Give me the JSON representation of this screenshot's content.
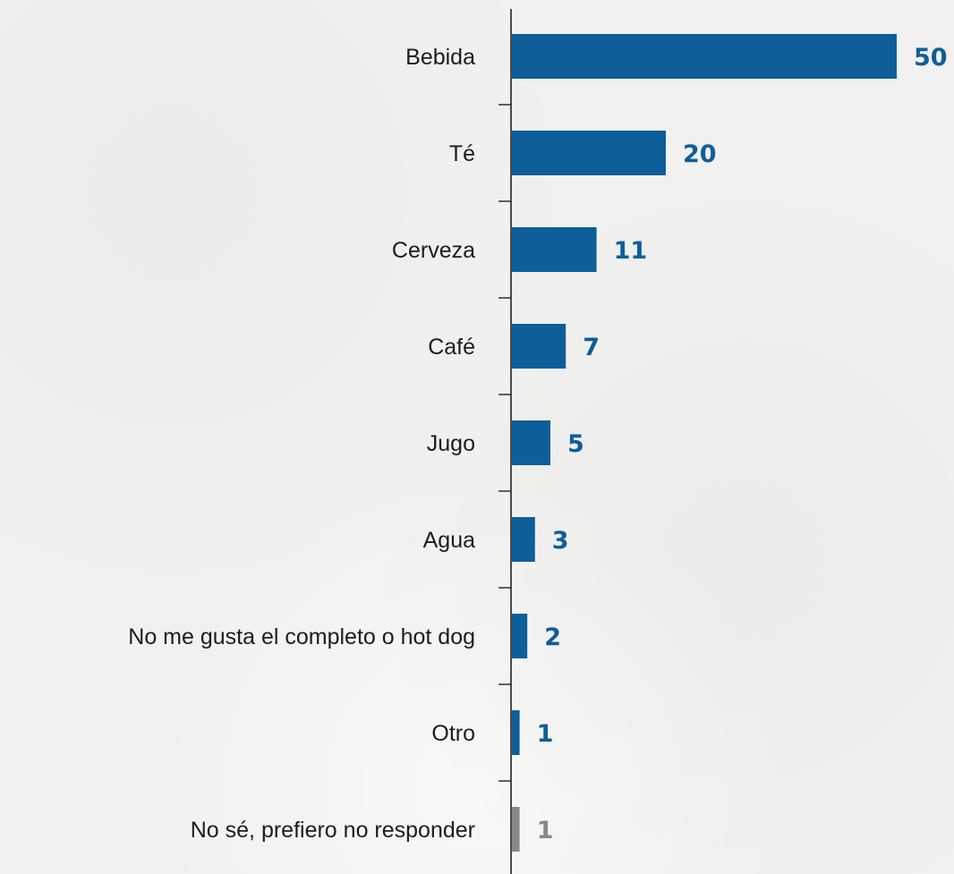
{
  "chart_data": {
    "type": "bar",
    "orientation": "horizontal",
    "categories": [
      "Bebida",
      "Té",
      "Cerveza",
      "Café",
      "Jugo",
      "Agua",
      "No me gusta el completo o hot dog",
      "Otro",
      "No sé, prefiero no responder"
    ],
    "values": [
      50,
      20,
      11,
      7,
      5,
      3,
      2,
      1,
      1
    ],
    "bar_colors": [
      "#0e5e99",
      "#0e5e99",
      "#0e5e99",
      "#0e5e99",
      "#0e5e99",
      "#0e5e99",
      "#0e5e99",
      "#0e5e99",
      "#888888"
    ],
    "label_colors": [
      "#0e5e99",
      "#0e5e99",
      "#0e5e99",
      "#0e5e99",
      "#0e5e99",
      "#0e5e99",
      "#0e5e99",
      "#0e5e99",
      "#888888"
    ],
    "xlim": [
      0,
      50
    ],
    "grid": false,
    "legend": "none"
  },
  "colors": {
    "background": "#f1f1ef",
    "axis": "#222222",
    "text": "#1d1d1d"
  }
}
